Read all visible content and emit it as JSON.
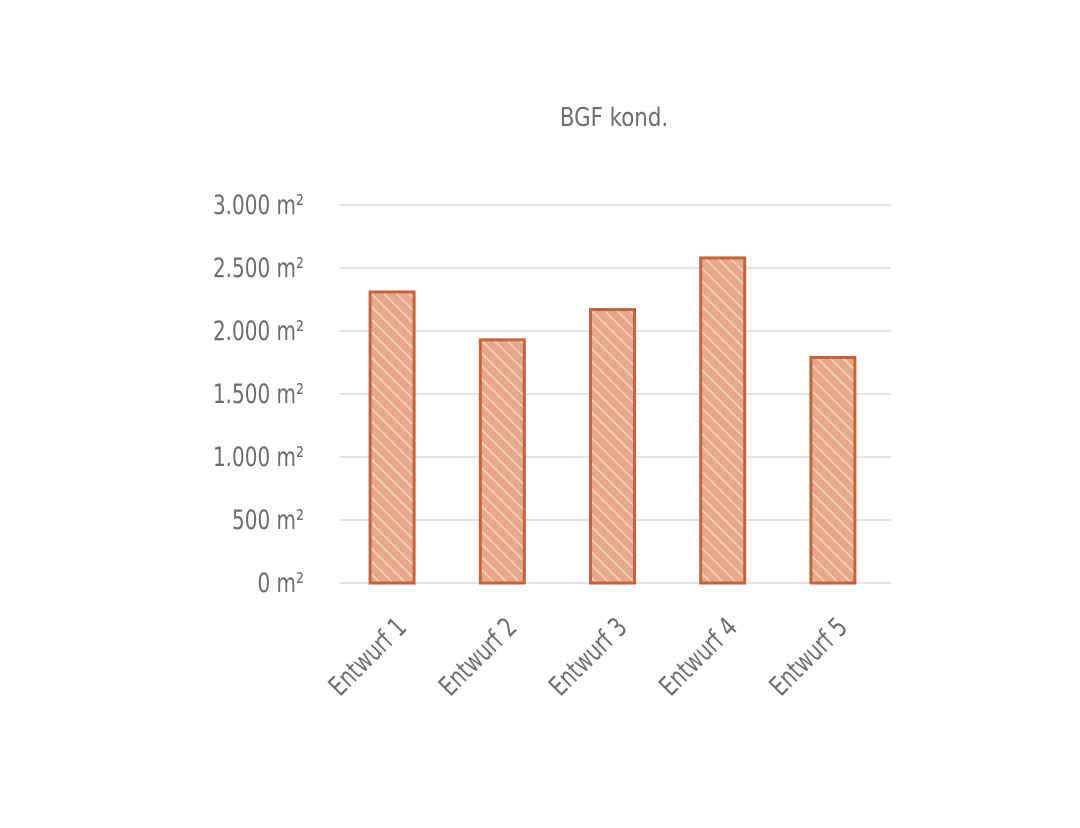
{
  "chart_data": {
    "type": "bar",
    "title": "BGF kond.",
    "categories": [
      "Entwurf 1",
      "Entwurf 2",
      "Entwurf 3",
      "Entwurf 4",
      "Entwurf 5"
    ],
    "values": [
      2310,
      1930,
      2170,
      2580,
      1790
    ],
    "ylim": [
      0,
      3000
    ],
    "y_ticks": [
      0,
      500,
      1000,
      1500,
      2000,
      2500,
      3000
    ],
    "y_tick_labels": [
      "0 m²",
      "500 m²",
      "1.000 m²",
      "1.500 m²",
      "2.000 m²",
      "2.500 m²",
      "3.000 m²"
    ],
    "xlabel": "",
    "ylabel": "",
    "grid": true,
    "legend": "none",
    "bar_fill": "#e8a98a",
    "bar_hatch": "#f3d2c0",
    "bar_stroke": "#c8623a",
    "grid_color": "#c9c9c9",
    "text_color": "#6d6d6d"
  }
}
